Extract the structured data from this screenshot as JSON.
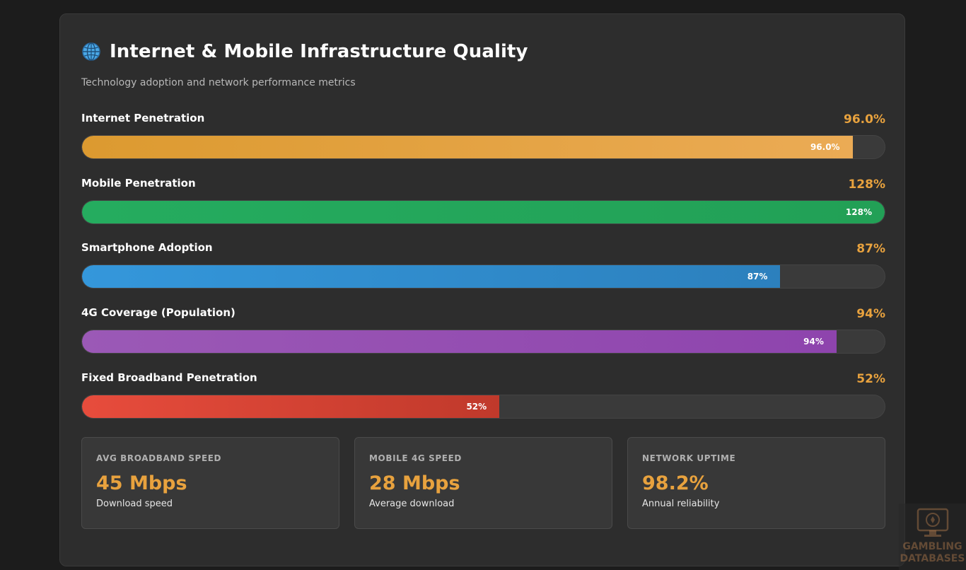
{
  "header": {
    "icon": "globe-icon",
    "title": "Internet & Mobile Infrastructure Quality",
    "subtitle": "Technology adoption and network performance metrics"
  },
  "chart_data": {
    "type": "bar",
    "orientation": "horizontal",
    "title": "Internet & Mobile Infrastructure Quality",
    "subtitle": "Technology adoption and network performance metrics",
    "xlim": [
      0,
      100
    ],
    "categories": [
      "Internet Penetration",
      "Mobile Penetration",
      "Smartphone Adoption",
      "4G Coverage (Population)",
      "Fixed Broadband Penetration"
    ],
    "values": [
      96.0,
      128,
      87,
      94,
      52
    ],
    "value_labels": [
      "96.0%",
      "128%",
      "87%",
      "94%",
      "52%"
    ],
    "colors": [
      [
        "#dc9a30",
        "#ebab55"
      ],
      [
        "#25ac5f",
        "#22a056"
      ],
      [
        "#3497db",
        "#2c80bd"
      ],
      [
        "#9b59b6",
        "#8e44ad"
      ],
      [
        "#e74c3c",
        "#c0392b"
      ]
    ]
  },
  "stats": [
    {
      "label": "AVG BROADBAND SPEED",
      "value": "45 Mbps",
      "desc": "Download speed"
    },
    {
      "label": "MOBILE 4G SPEED",
      "value": "28 Mbps",
      "desc": "Average download"
    },
    {
      "label": "NETWORK UPTIME",
      "value": "98.2%",
      "desc": "Annual reliability"
    }
  ],
  "watermark": {
    "line1": "GAMBLING",
    "line2": "DATABASES",
    "icon": "monitor-chip-icon"
  },
  "theme": {
    "accent": "#e8a23e",
    "card_bg": "#2d2d2d",
    "page_bg": "#1c1c1c"
  }
}
